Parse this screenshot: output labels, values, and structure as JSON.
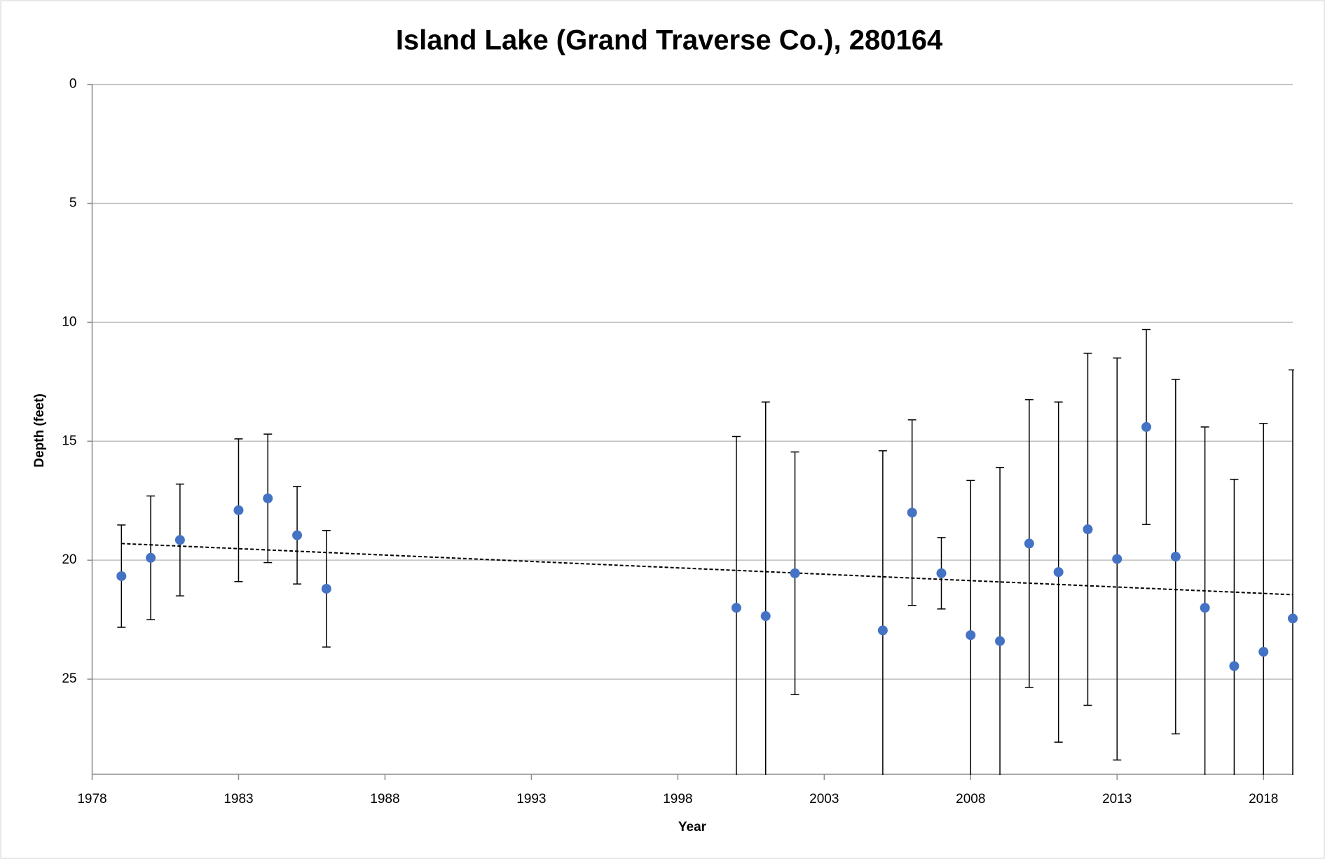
{
  "chart_data": {
    "type": "scatter",
    "title": "Island Lake (Grand Traverse Co.), 280164",
    "x_label": "Year",
    "y_label": "Depth (feet)",
    "x": [
      1979,
      1980,
      1981,
      1983,
      1984,
      1985,
      1986,
      2000,
      2001,
      2002,
      2005,
      2006,
      2007,
      2008,
      2009,
      2010,
      2011,
      2012,
      2013,
      2014,
      2015,
      2016,
      2017,
      2018,
      2019
    ],
    "values": [
      20.67,
      19.9,
      19.15,
      17.9,
      17.4,
      18.95,
      21.2,
      22.0,
      22.35,
      20.55,
      22.95,
      18.0,
      20.55,
      23.15,
      23.4,
      19.3,
      20.5,
      18.7,
      19.95,
      14.4,
      19.85,
      22.0,
      24.45,
      23.85,
      22.45
    ],
    "errors": [
      2.15,
      2.6,
      2.35,
      3.0,
      2.7,
      2.05,
      2.45,
      7.2,
      9.0,
      5.1,
      7.55,
      3.9,
      1.5,
      6.5,
      7.3,
      6.05,
      7.15,
      7.4,
      8.45,
      4.1,
      7.45,
      7.6,
      7.85,
      9.6,
      10.45
    ],
    "color": "#4472c4",
    "trendline": {
      "x": [
        1979,
        2019
      ],
      "values": [
        19.3,
        21.45
      ]
    },
    "xlim": [
      1978,
      2019
    ],
    "xticks": [
      1978,
      1983,
      1988,
      1993,
      1998,
      2003,
      2008,
      2013,
      2018
    ],
    "ylim": [
      0,
      29
    ],
    "yticks": [
      0,
      5,
      10,
      15,
      20,
      25
    ],
    "y_reversed": true,
    "grid": true
  }
}
